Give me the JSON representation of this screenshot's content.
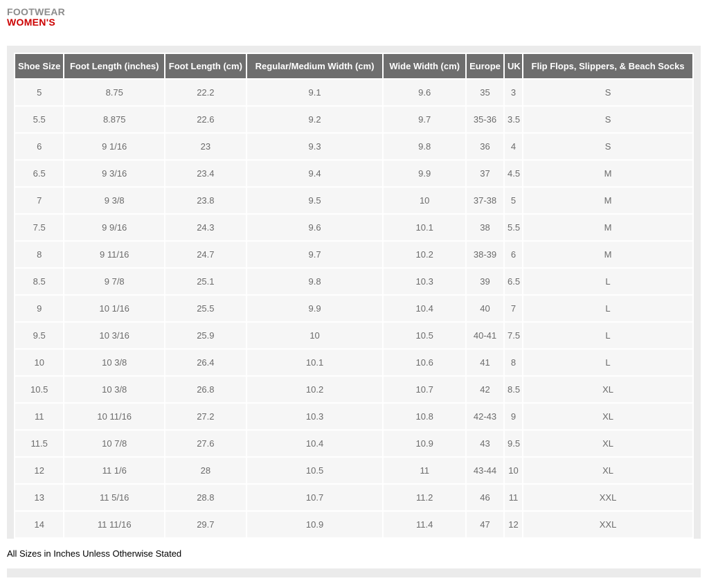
{
  "page_header": {
    "category": "FOOTWEAR",
    "section": "WOMEN'S"
  },
  "table": {
    "columns": [
      "Shoe Size",
      "Foot Length (inches)",
      "Foot Length (cm)",
      "Regular/Medium Width (cm)",
      "Wide Width (cm)",
      "Europe",
      "UK",
      "Flip Flops, Slippers, & Beach Socks"
    ],
    "column_widths_pct": [
      7.2,
      14.9,
      12.0,
      20.3,
      12.2,
      5.5,
      2.6,
      25.3
    ],
    "rows": [
      [
        "5",
        "8.75",
        "22.2",
        "9.1",
        "9.6",
        "35",
        "3",
        "S"
      ],
      [
        "5.5",
        "8.875",
        "22.6",
        "9.2",
        "9.7",
        "35-36",
        "3.5",
        "S"
      ],
      [
        "6",
        "9 1/16",
        "23",
        "9.3",
        "9.8",
        "36",
        "4",
        "S"
      ],
      [
        "6.5",
        "9 3/16",
        "23.4",
        "9.4",
        "9.9",
        "37",
        "4.5",
        "M"
      ],
      [
        "7",
        "9 3/8",
        "23.8",
        "9.5",
        "10",
        "37-38",
        "5",
        "M"
      ],
      [
        "7.5",
        "9 9/16",
        "24.3",
        "9.6",
        "10.1",
        "38",
        "5.5",
        "M"
      ],
      [
        "8",
        "9 11/16",
        "24.7",
        "9.7",
        "10.2",
        "38-39",
        "6",
        "M"
      ],
      [
        "8.5",
        "9 7/8",
        "25.1",
        "9.8",
        "10.3",
        "39",
        "6.5",
        "L"
      ],
      [
        "9",
        "10 1/16",
        "25.5",
        "9.9",
        "10.4",
        "40",
        "7",
        "L"
      ],
      [
        "9.5",
        "10 3/16",
        "25.9",
        "10",
        "10.5",
        "40-41",
        "7.5",
        "L"
      ],
      [
        "10",
        "10 3/8",
        "26.4",
        "10.1",
        "10.6",
        "41",
        "8",
        "L"
      ],
      [
        "10.5",
        "10 3/8",
        "26.8",
        "10.2",
        "10.7",
        "42",
        "8.5",
        "XL"
      ],
      [
        "11",
        "10 11/16",
        "27.2",
        "10.3",
        "10.8",
        "42-43",
        "9",
        "XL"
      ],
      [
        "11.5",
        "10 7/8",
        "27.6",
        "10.4",
        "10.9",
        "43",
        "9.5",
        "XL"
      ],
      [
        "12",
        "11 1/6",
        "28",
        "10.5",
        "11",
        "43-44",
        "10",
        "XL"
      ],
      [
        "13",
        "11 5/16",
        "28.8",
        "10.7",
        "11.2",
        "46",
        "11",
        "XXL"
      ],
      [
        "14",
        "11 11/16",
        "29.7",
        "10.9",
        "11.4",
        "47",
        "12",
        "XXL"
      ]
    ]
  },
  "footer_note": "All Sizes in Inches Unless Otherwise Stated",
  "colors": {
    "accent_red": "#cc0000",
    "title_gray": "#8c8c8c",
    "table_header_bg": "#6e6e6e",
    "cell_bg": "#f6f6f6",
    "panel_bg": "#ebebeb"
  }
}
